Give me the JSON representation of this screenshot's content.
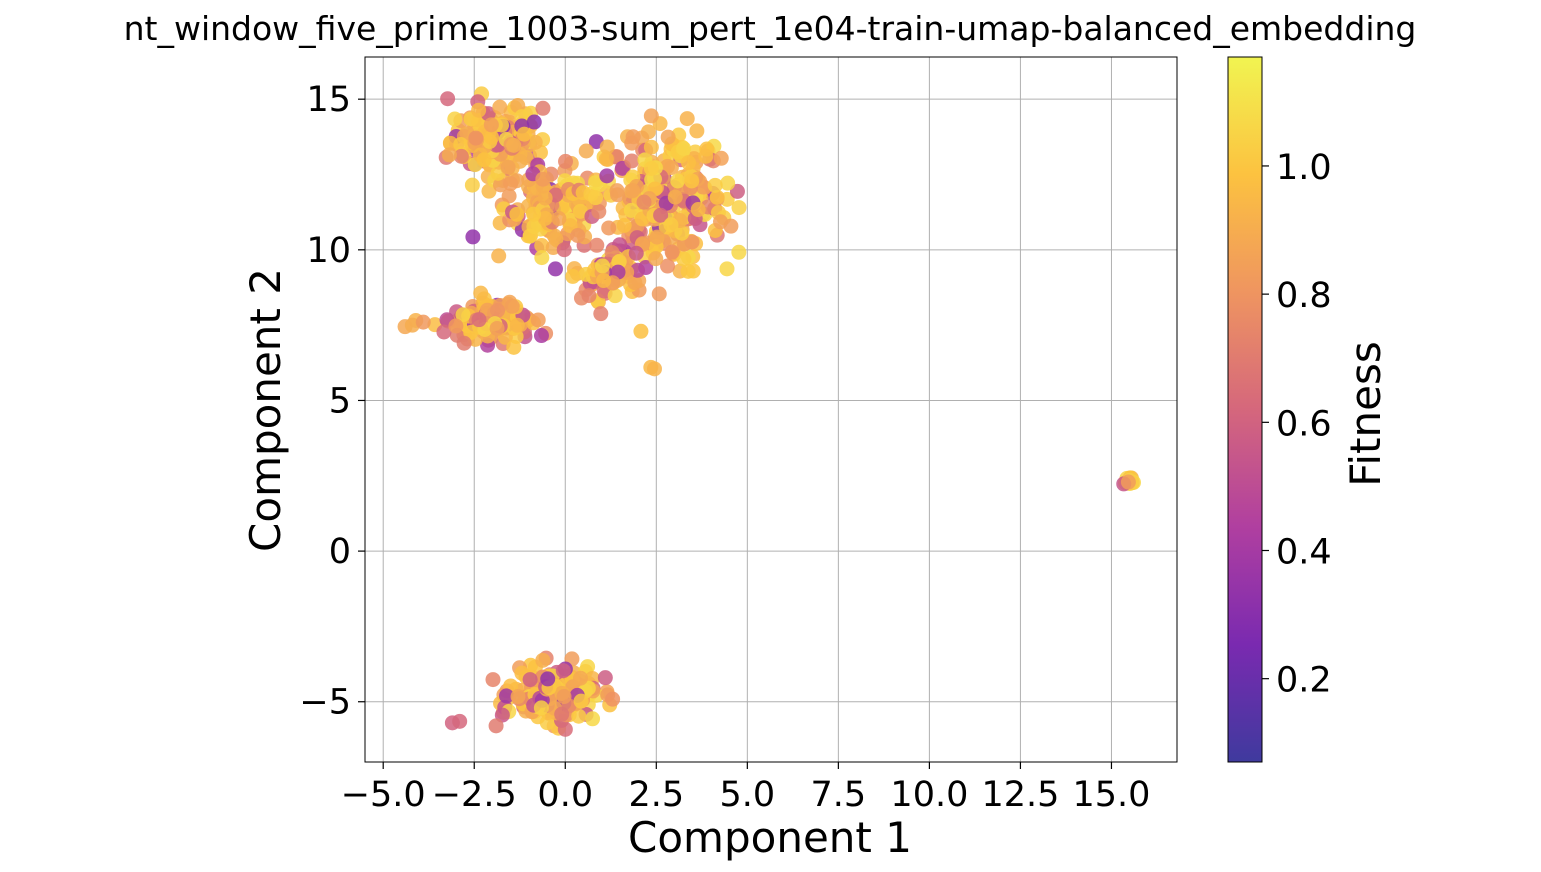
{
  "chart_data": {
    "type": "scatter",
    "title": "nt_window_five_prime_1003-sum_pert_1e04-train-umap-balanced_embedding",
    "xlabel": "Component 1",
    "ylabel": "Component 2",
    "xlim": [
      -5.5,
      16.8
    ],
    "ylim": [
      -7.0,
      16.4
    ],
    "xticks": [
      -5.0,
      -2.5,
      0.0,
      2.5,
      5.0,
      7.5,
      10.0,
      12.5,
      15.0
    ],
    "xtick_labels": [
      "−5.0",
      "−2.5",
      "0.0",
      "2.5",
      "5.0",
      "7.5",
      "10.0",
      "12.5",
      "15.0"
    ],
    "yticks": [
      -5,
      0,
      5,
      10,
      15
    ],
    "ytick_labels": [
      "−5",
      "0",
      "5",
      "10",
      "15"
    ],
    "grid": true,
    "colormap": "plasma",
    "colorbar": {
      "label": "Fitness",
      "range": [
        0.07,
        1.17
      ],
      "ticks": [
        0.2,
        0.4,
        0.6,
        0.8,
        1.0
      ],
      "tick_labels": [
        "0.2",
        "0.4",
        "0.6",
        "0.8",
        "1.0"
      ],
      "colors": [
        "#3f3a9e",
        "#7a2ab0",
        "#b03fa0",
        "#d5677c",
        "#ef9560",
        "#fcc240",
        "#f1f451"
      ]
    },
    "clusters": [
      {
        "name": "upper-left",
        "center": [
          -1.9,
          13.6
        ],
        "spread": [
          0.9,
          0.9
        ],
        "n": 160
      },
      {
        "name": "upper-middle",
        "center": [
          -0.4,
          11.4
        ],
        "spread": [
          0.9,
          0.9
        ],
        "n": 140
      },
      {
        "name": "upper-right",
        "center": [
          2.6,
          11.8
        ],
        "spread": [
          1.3,
          1.6
        ],
        "n": 300
      },
      {
        "name": "middle-lower",
        "center": [
          1.2,
          9.2
        ],
        "spread": [
          0.7,
          0.6
        ],
        "n": 70
      },
      {
        "name": "left-arm",
        "center": [
          -2.0,
          7.6
        ],
        "spread": [
          0.8,
          0.5
        ],
        "n": 130
      },
      {
        "name": "bottom-cluster",
        "center": [
          -0.3,
          -4.8
        ],
        "spread": [
          0.8,
          0.6
        ],
        "n": 220
      },
      {
        "name": "far-right",
        "center": [
          15.5,
          2.3
        ],
        "spread": [
          0.12,
          0.1
        ],
        "n": 12
      }
    ],
    "outliers": [
      {
        "x": -4.4,
        "y": 7.45,
        "v": 0.88
      },
      {
        "x": -4.2,
        "y": 7.5,
        "v": 0.9
      },
      {
        "x": -3.9,
        "y": 7.6,
        "v": 0.82
      },
      {
        "x": -3.1,
        "y": -5.7,
        "v": 0.6
      },
      {
        "x": -2.9,
        "y": -5.65,
        "v": 0.62
      },
      {
        "x": 2.35,
        "y": 6.1,
        "v": 0.95
      },
      {
        "x": 2.45,
        "y": 6.05,
        "v": 0.93
      },
      {
        "x": 1.1,
        "y": -4.2,
        "v": 0.58
      },
      {
        "x": -1.9,
        "y": -5.8,
        "v": 0.7
      }
    ]
  }
}
